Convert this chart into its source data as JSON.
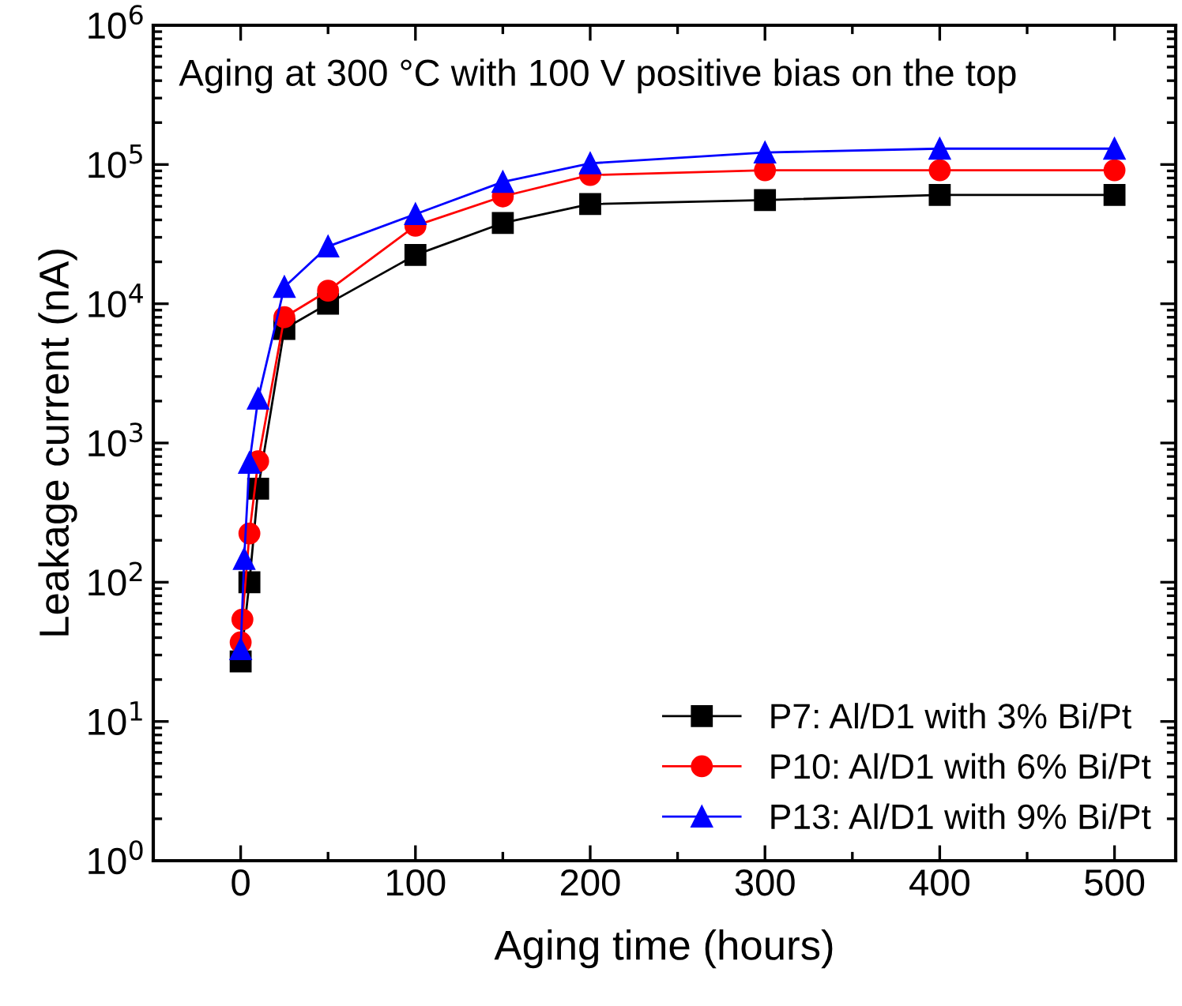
{
  "chart_data": {
    "type": "line",
    "xlabel": "Aging time (hours)",
    "ylabel": "Leakage current (nA)",
    "annotations": [
      "Aging at 300 °C with 100 V positive bias on the top"
    ],
    "log": "y",
    "xlim": [
      -50,
      535
    ],
    "xticks": [
      0,
      100,
      200,
      300,
      400,
      500
    ],
    "ylim": [
      1,
      1000000
    ],
    "yticks": [
      {
        "value": 1,
        "label": "10$^{0}$"
      },
      {
        "value": 10,
        "label": "10$^{1}$"
      },
      {
        "value": 100,
        "label": "10$^{2}$"
      },
      {
        "value": 1000,
        "label": "10$^{3}$"
      },
      {
        "value": 10000,
        "label": "10$^{4}$"
      },
      {
        "value": 100000,
        "label": "10$^{5}$"
      },
      {
        "value": 1000000,
        "label": "10$^{6}$"
      }
    ],
    "grid": false,
    "legend": "bottom right",
    "series": [
      {
        "name": "P7: Al/D1 with 3% Bi/Pt",
        "color": "#000000",
        "marker": "square",
        "x": [
          0,
          5,
          10,
          25,
          50,
          100,
          150,
          200,
          300,
          400,
          500
        ],
        "values": [
          27,
          100,
          470,
          6600,
          10000,
          22400,
          38000,
          52000,
          55500,
          60500,
          60500
        ]
      },
      {
        "name": "P10: Al/D1 with 6% Bi/Pt",
        "color": "#ff0000",
        "marker": "circle",
        "x": [
          0,
          1,
          5,
          10,
          25,
          50,
          100,
          150,
          200,
          300,
          400,
          500
        ],
        "values": [
          37,
          54,
          224,
          740,
          8000,
          12400,
          36300,
          59000,
          84000,
          91000,
          91000,
          91000
        ]
      },
      {
        "name": "P13: Al/D1 with 9% Bi/Pt",
        "color": "#0000ff",
        "marker": "triangle",
        "x": [
          0,
          2,
          5,
          10,
          25,
          50,
          100,
          150,
          200,
          300,
          400,
          500
        ],
        "values": [
          33,
          147,
          720,
          2080,
          13200,
          25800,
          44000,
          75000,
          102000,
          122000,
          130000,
          130000
        ]
      }
    ]
  }
}
